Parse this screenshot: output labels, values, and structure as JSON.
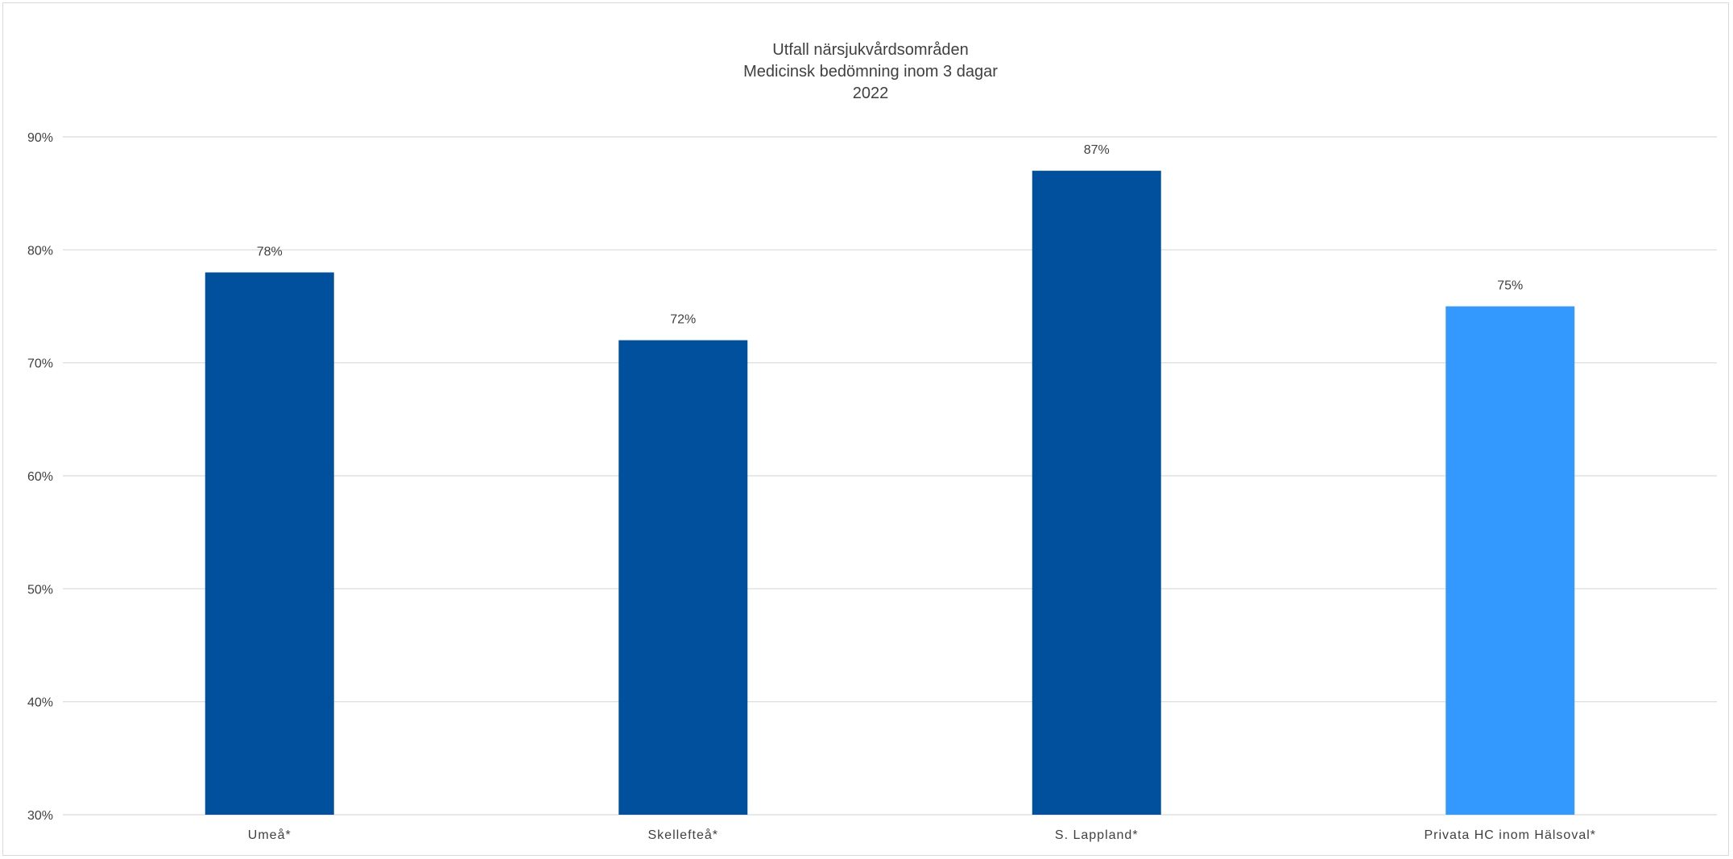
{
  "chart_data": {
    "type": "bar",
    "title": [
      "Utfall närsjukvårdsområden",
      "Medicinsk bedömning inom 3 dagar",
      "2022"
    ],
    "categories": [
      "Umeå*",
      "Skellefteå*",
      "S. Lappland*",
      "Privata HC inom Hälsoval*"
    ],
    "values": [
      78,
      72,
      87,
      75
    ],
    "data_labels": [
      "78%",
      "72%",
      "87%",
      "75%"
    ],
    "bar_colors": [
      "#00509e",
      "#00509e",
      "#00509e",
      "#3399ff"
    ],
    "ylim": [
      30,
      90
    ],
    "yticks": [
      30,
      40,
      50,
      60,
      70,
      80,
      90
    ],
    "ytick_labels": [
      "30%",
      "40%",
      "50%",
      "60%",
      "70%",
      "80%",
      "90%"
    ],
    "xlabel": "",
    "ylabel": "",
    "grid": true,
    "legend": false
  }
}
